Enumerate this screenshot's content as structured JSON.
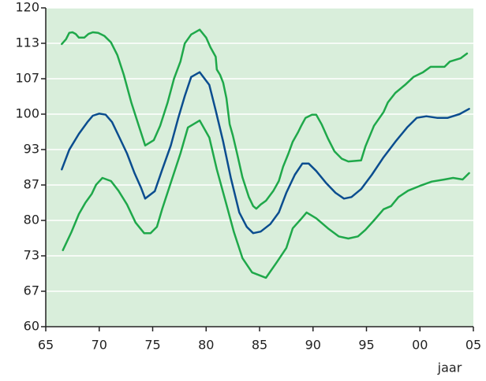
{
  "chart_data": {
    "type": "line",
    "x_label": "jaar",
    "xlim": [
      65,
      105
    ],
    "xticks": [
      65,
      70,
      75,
      80,
      85,
      90,
      95,
      {
        "value": 100,
        "label": "00"
      },
      {
        "value": 105,
        "label": "05"
      }
    ],
    "ylim": [
      60,
      120
    ],
    "yticks": [
      60,
      {
        "value": 66.667,
        "label": "67"
      },
      {
        "value": 73.333,
        "label": "73"
      },
      80,
      {
        "value": 86.667,
        "label": "87"
      },
      {
        "value": 93.333,
        "label": "93"
      },
      100,
      {
        "value": 106.667,
        "label": "107"
      },
      {
        "value": 113.333,
        "label": "113"
      },
      120
    ],
    "grid": true,
    "background": "#d9eedb",
    "series": [
      {
        "color": "#1fa84a",
        "x": [
          66.5,
          66.9,
          67.2,
          67.5,
          67.8,
          68.1,
          68.6,
          69.0,
          69.4,
          69.9,
          70.5,
          71.1,
          71.7,
          72.3,
          73.0,
          73.7,
          74.3,
          75.1,
          75.7,
          76.4,
          77.0,
          77.6,
          78.0,
          78.6,
          79.4,
          80.0,
          80.4,
          80.9,
          81.0,
          81.3,
          81.6,
          81.9,
          82.2,
          82.5,
          82.9,
          83.4,
          84.0,
          84.4,
          84.7,
          85.1,
          85.6,
          86.3,
          86.8,
          87.2,
          87.7,
          88.1,
          88.6,
          88.9,
          89.3,
          89.9,
          90.3,
          90.8,
          91.4,
          92.0,
          92.7,
          93.3,
          94.5,
          94.9,
          95.7,
          96.6,
          97.0,
          97.7,
          98.6,
          99.4,
          100.3,
          101.0,
          102.3,
          102.8,
          103.8,
          104.4
        ],
        "values": [
          113.2,
          114.1,
          115.3,
          115.4,
          115.1,
          114.4,
          114.4,
          115.1,
          115.4,
          115.3,
          114.7,
          113.5,
          111.1,
          107.4,
          102.2,
          97.8,
          94.1,
          95.1,
          97.8,
          102.2,
          106.7,
          109.9,
          113.3,
          115.0,
          115.9,
          114.4,
          112.6,
          110.8,
          108.4,
          107.4,
          105.9,
          103.0,
          98.1,
          96.0,
          92.6,
          88.1,
          84.4,
          82.7,
          82.2,
          83.0,
          83.7,
          85.6,
          87.4,
          90.1,
          92.6,
          94.8,
          96.6,
          97.8,
          99.3,
          99.9,
          99.9,
          98.1,
          95.4,
          93.0,
          91.6,
          91.1,
          91.3,
          93.9,
          97.8,
          100.4,
          102.2,
          104.0,
          105.5,
          107.0,
          107.9,
          108.9,
          108.9,
          109.9,
          110.5,
          111.4
        ]
      },
      {
        "color": "#0b4d8f",
        "x": [
          66.5,
          67.2,
          68.1,
          68.9,
          69.4,
          70.0,
          70.6,
          71.2,
          71.8,
          72.6,
          73.3,
          73.9,
          74.3,
          75.2,
          75.9,
          76.7,
          77.4,
          78.0,
          78.6,
          79.4,
          80.3,
          80.9,
          81.6,
          82.3,
          83.1,
          83.8,
          84.4,
          85.1,
          86.0,
          86.8,
          87.5,
          88.3,
          89.0,
          89.6,
          90.3,
          91.2,
          92.1,
          92.9,
          93.6,
          94.5,
          95.5,
          96.6,
          97.7,
          98.8,
          99.7,
          100.6,
          101.6,
          102.6,
          103.7,
          104.6
        ],
        "values": [
          89.6,
          93.3,
          96.3,
          98.5,
          99.7,
          100.1,
          99.9,
          98.5,
          96.0,
          92.6,
          88.9,
          86.2,
          84.1,
          85.5,
          89.6,
          94.1,
          99.3,
          103.4,
          107.0,
          107.9,
          105.5,
          100.7,
          94.8,
          88.1,
          81.5,
          78.8,
          77.6,
          77.9,
          79.3,
          81.5,
          85.2,
          88.6,
          90.7,
          90.7,
          89.3,
          87.1,
          85.2,
          84.1,
          84.4,
          85.9,
          88.6,
          91.9,
          94.8,
          97.5,
          99.3,
          99.6,
          99.3,
          99.3,
          100.0,
          101.0
        ]
      },
      {
        "color": "#1fa84a",
        "x": [
          66.6,
          67.4,
          68.1,
          68.7,
          69.3,
          69.7,
          70.3,
          71.1,
          71.8,
          72.6,
          73.4,
          74.2,
          74.8,
          75.4,
          75.9,
          76.7,
          77.6,
          78.3,
          79.4,
          80.3,
          81.0,
          81.9,
          82.6,
          83.4,
          84.3,
          85.6,
          86.6,
          87.5,
          88.1,
          88.9,
          89.4,
          90.3,
          91.4,
          92.4,
          93.3,
          94.2,
          94.9,
          95.7,
          96.6,
          97.3,
          98.0,
          98.9,
          100.0,
          101.1,
          102.3,
          103.1,
          104.0,
          104.6
        ],
        "values": [
          74.4,
          77.8,
          81.2,
          83.3,
          85.0,
          86.7,
          88.0,
          87.4,
          85.6,
          83.0,
          79.6,
          77.6,
          77.6,
          78.8,
          82.2,
          87.1,
          92.6,
          97.5,
          98.8,
          95.6,
          89.6,
          83.0,
          77.8,
          72.9,
          70.2,
          69.2,
          72.1,
          74.8,
          78.5,
          80.3,
          81.5,
          80.4,
          78.5,
          77.0,
          76.6,
          77.0,
          78.2,
          80.0,
          82.1,
          82.7,
          84.4,
          85.6,
          86.5,
          87.3,
          87.7,
          88.0,
          87.7,
          88.9
        ]
      }
    ]
  }
}
